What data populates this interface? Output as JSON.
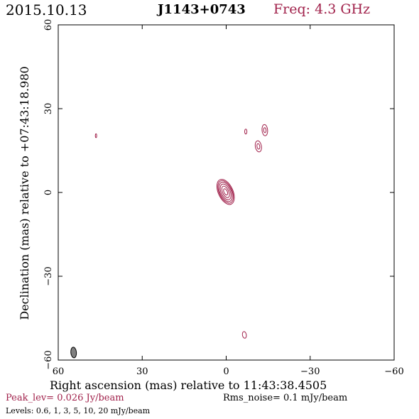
{
  "header": {
    "date": "2015.10.13",
    "source": "J1143+0743",
    "freq": "Freq: 4.3 GHz"
  },
  "footer": {
    "peak": "Peak_lev=  0.026 Jy/beam",
    "rms": "Rms_noise=  0.1 mJy/beam",
    "levels": "Levels: 0.6,   1,   3,   5,  10,  20 mJy/beam"
  },
  "colors": {
    "contour": "#a0204a",
    "beam": "#808080"
  },
  "chart_data": {
    "type": "contour",
    "title": "J1143+0743",
    "xlabel": "Right ascension (mas) relative to 11:43:38.4505",
    "ylabel": "Declination (mas) relative to +07:43:18.980",
    "xlim": [
      60,
      -60
    ],
    "ylim": [
      -60,
      60
    ],
    "xticks": [
      60,
      30,
      0,
      -30,
      -60
    ],
    "yticks": [
      -60,
      -30,
      0,
      30,
      60
    ],
    "x_tick_labels": [
      "60",
      "30",
      "0",
      "−30",
      "−60"
    ],
    "y_tick_labels": [
      "−60",
      "−30",
      "0",
      "30",
      "60"
    ],
    "contour_levels_mJy": [
      0.6,
      1,
      3,
      5,
      10,
      20
    ],
    "peak_Jy_per_beam": 0.026,
    "rms_mJy_per_beam": 0.1,
    "components": [
      {
        "name": "core",
        "x": 0.2,
        "y": 0.2,
        "ellipses": [
          {
            "a": 4.8,
            "b": 2.6,
            "pa": 25
          },
          {
            "a": 4.3,
            "b": 2.3,
            "pa": 25
          },
          {
            "a": 3.7,
            "b": 2.0,
            "pa": 25
          },
          {
            "a": 3.0,
            "b": 1.6,
            "pa": 25
          },
          {
            "a": 2.2,
            "b": 1.1,
            "pa": 25
          },
          {
            "a": 1.2,
            "b": 0.6,
            "pa": 25
          }
        ]
      },
      {
        "name": "comp-upper-right",
        "x": -13.8,
        "y": 22.3,
        "ellipses": [
          {
            "a": 2.0,
            "b": 1.0,
            "pa": 5
          },
          {
            "a": 0.9,
            "b": 0.45,
            "pa": 5
          }
        ]
      },
      {
        "name": "comp-mid-right",
        "x": -11.5,
        "y": 16.5,
        "ellipses": [
          {
            "a": 2.0,
            "b": 1.1,
            "pa": 10
          },
          {
            "a": 1.0,
            "b": 0.5,
            "pa": 10
          }
        ]
      },
      {
        "name": "comp-small-a",
        "x": -7.0,
        "y": 21.8,
        "ellipses": [
          {
            "a": 0.9,
            "b": 0.4,
            "pa": 0
          }
        ]
      },
      {
        "name": "comp-left",
        "x": 46.5,
        "y": 20.3,
        "ellipses": [
          {
            "a": 0.7,
            "b": 0.25,
            "pa": 0
          }
        ]
      },
      {
        "name": "comp-low",
        "x": -6.5,
        "y": -51.0,
        "ellipses": [
          {
            "a": 1.2,
            "b": 0.7,
            "pa": 10
          }
        ]
      }
    ],
    "beam": {
      "x": 54.5,
      "y": -57.3,
      "major_mas": 3.8,
      "minor_mas": 2.0,
      "pa": 5
    }
  }
}
